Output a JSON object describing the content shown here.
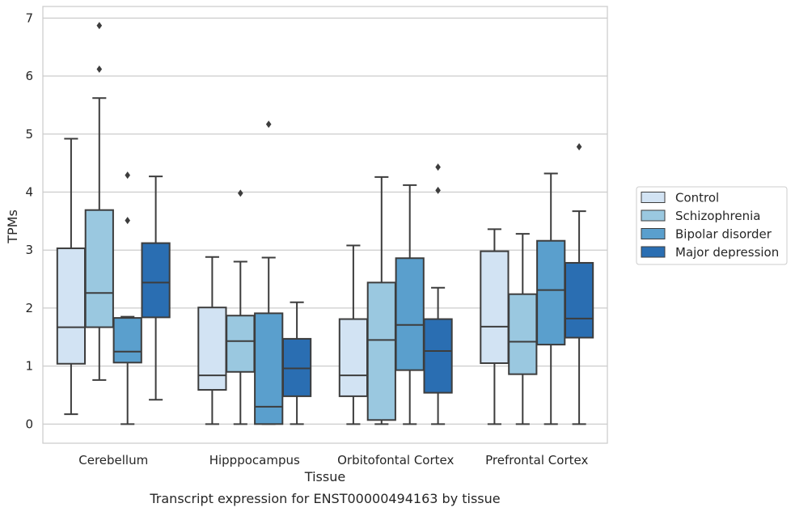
{
  "chart_data": {
    "type": "boxplot",
    "title": "",
    "caption": "Transcript expression for ENST00000494163 by tissue",
    "xlabel": "Tissue",
    "ylabel": "TPMs",
    "ylim": [
      -0.33,
      7.2
    ],
    "yticks": [
      0,
      1,
      2,
      3,
      4,
      5,
      6,
      7
    ],
    "grid": "horizontal",
    "legend_position": "right",
    "categories": [
      "Cerebellum",
      "Hipppocampus",
      "Orbitofontal Cortex",
      "Prefrontal Cortex"
    ],
    "series": [
      {
        "name": "Control",
        "color": "#d2e3f3",
        "boxes": [
          {
            "whisker_low": 0.17,
            "q1": 1.04,
            "median": 1.67,
            "q3": 3.03,
            "whisker_high": 4.92,
            "outliers": []
          },
          {
            "whisker_low": 0.0,
            "q1": 0.59,
            "median": 0.84,
            "q3": 2.01,
            "whisker_high": 2.88,
            "outliers": []
          },
          {
            "whisker_low": 0.0,
            "q1": 0.48,
            "median": 0.84,
            "q3": 1.81,
            "whisker_high": 3.08,
            "outliers": []
          },
          {
            "whisker_low": 0.0,
            "q1": 1.05,
            "median": 1.68,
            "q3": 2.98,
            "whisker_high": 3.36,
            "outliers": []
          }
        ]
      },
      {
        "name": "Schizophrenia",
        "color": "#9ac8e0",
        "boxes": [
          {
            "whisker_low": 0.76,
            "q1": 1.67,
            "median": 2.26,
            "q3": 3.69,
            "whisker_high": 5.62,
            "outliers": [
              6.87,
              6.12
            ]
          },
          {
            "whisker_low": 0.0,
            "q1": 0.9,
            "median": 1.43,
            "q3": 1.87,
            "whisker_high": 2.8,
            "outliers": [
              3.98
            ]
          },
          {
            "whisker_low": 0.0,
            "q1": 0.07,
            "median": 1.45,
            "q3": 2.44,
            "whisker_high": 4.26,
            "outliers": []
          },
          {
            "whisker_low": 0.0,
            "q1": 0.86,
            "median": 1.42,
            "q3": 2.24,
            "whisker_high": 3.28,
            "outliers": []
          }
        ]
      },
      {
        "name": "Bipolar disorder",
        "color": "#5a9fcd",
        "boxes": [
          {
            "whisker_low": 0.0,
            "q1": 1.06,
            "median": 1.25,
            "q3": 1.83,
            "whisker_high": 1.85,
            "outliers": [
              4.29,
              3.51
            ]
          },
          {
            "whisker_low": 0.0,
            "q1": 0.0,
            "median": 0.3,
            "q3": 1.91,
            "whisker_high": 2.87,
            "outliers": [
              5.17
            ]
          },
          {
            "whisker_low": 0.0,
            "q1": 0.93,
            "median": 1.71,
            "q3": 2.86,
            "whisker_high": 4.12,
            "outliers": []
          },
          {
            "whisker_low": 0.0,
            "q1": 1.37,
            "median": 2.31,
            "q3": 3.16,
            "whisker_high": 4.32,
            "outliers": []
          }
        ]
      },
      {
        "name": "Major depression",
        "color": "#2a6eb2",
        "boxes": [
          {
            "whisker_low": 0.42,
            "q1": 1.84,
            "median": 2.44,
            "q3": 3.12,
            "whisker_high": 4.27,
            "outliers": []
          },
          {
            "whisker_low": 0.0,
            "q1": 0.48,
            "median": 0.96,
            "q3": 1.47,
            "whisker_high": 2.1,
            "outliers": []
          },
          {
            "whisker_low": 0.0,
            "q1": 0.54,
            "median": 1.26,
            "q3": 1.81,
            "whisker_high": 2.35,
            "outliers": [
              4.43,
              4.03
            ]
          },
          {
            "whisker_low": 0.0,
            "q1": 1.49,
            "median": 1.82,
            "q3": 2.78,
            "whisker_high": 3.67,
            "outliers": [
              4.78
            ]
          }
        ]
      }
    ]
  }
}
